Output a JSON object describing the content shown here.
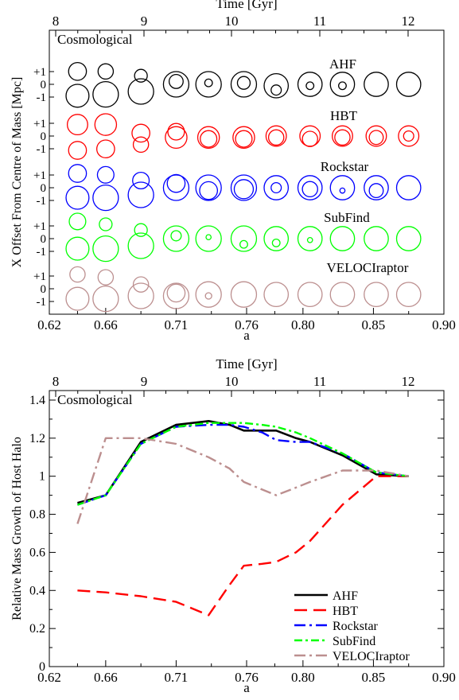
{
  "chart_data": [
    {
      "type": "scatter",
      "panel": "top",
      "top_axis_label": "Time [Gyr]",
      "top_ticks": [
        "8",
        "9",
        "10",
        "11",
        "12"
      ],
      "xlabel": "a",
      "ylabel": "X Offset From Centre of Mass [Mpc]",
      "x_ticks": [
        "0.62",
        "0.66",
        "0.71",
        "0.76",
        "0.80",
        "0.85",
        "0.90"
      ],
      "annotation": "Cosmological",
      "row_tick_labels": [
        "+1",
        "0",
        "-1"
      ],
      "x": [
        0.64,
        0.66,
        0.685,
        0.71,
        0.733,
        0.758,
        0.781,
        0.805,
        0.828,
        0.852,
        0.875
      ],
      "series": [
        {
          "name": "AHF",
          "color": "#000000",
          "host": [
            {
              "y": -0.8,
              "r": 0.9
            },
            {
              "y": -0.7,
              "r": 1.0
            },
            {
              "y": -0.5,
              "r": 1.0
            },
            {
              "y": 0,
              "r": 1.0
            },
            {
              "y": 0,
              "r": 1.0
            },
            {
              "y": 0,
              "r": 1.0
            },
            {
              "y": -0.1,
              "r": 0.95
            },
            {
              "y": 0,
              "r": 0.95
            },
            {
              "y": 0,
              "r": 0.95
            },
            {
              "y": 0,
              "r": 0.95
            },
            {
              "y": 0,
              "r": 0.95
            }
          ],
          "sub": [
            {
              "y": 0.9,
              "r": 0.7
            },
            {
              "y": 0.9,
              "r": 0.6
            },
            {
              "y": 0.6,
              "r": 0.5
            },
            {
              "y": 0.2,
              "r": 0.55
            },
            {
              "y": 0.1,
              "r": 0.3
            },
            {
              "y": 0.1,
              "r": 0.5
            },
            {
              "y": -0.4,
              "r": 0.4
            },
            {
              "y": -0.1,
              "r": 0.3
            },
            {
              "y": -0.1,
              "r": 0.3
            },
            null,
            null
          ]
        },
        {
          "name": "HBT",
          "color": "#ff0000",
          "host": [
            {
              "y": 0.8,
              "r": 0.8
            },
            {
              "y": 0.8,
              "r": 0.85
            },
            {
              "y": 0.2,
              "r": 0.7
            },
            {
              "y": -0.1,
              "r": 0.85
            },
            {
              "y": -0.1,
              "r": 0.85
            },
            {
              "y": -0.1,
              "r": 0.85
            },
            {
              "y": 0,
              "r": 0.8
            },
            {
              "y": 0,
              "r": 0.8
            },
            {
              "y": 0,
              "r": 0.8
            },
            {
              "y": 0,
              "r": 0.8
            },
            {
              "y": 0,
              "r": 0.8
            }
          ],
          "sub": [
            {
              "y": -1.0,
              "r": 0.7
            },
            {
              "y": -0.9,
              "r": 0.7
            },
            {
              "y": -0.6,
              "r": 0.6
            },
            {
              "y": 0.3,
              "r": 0.65
            },
            {
              "y": -0.2,
              "r": 0.65
            },
            {
              "y": -0.2,
              "r": 0.65
            },
            {
              "y": -0.1,
              "r": 0.6
            },
            {
              "y": -0.2,
              "r": 0.6
            },
            {
              "y": -0.1,
              "r": 0.6
            },
            {
              "y": -0.1,
              "r": 0.55
            },
            {
              "y": 0,
              "r": 0.4
            }
          ]
        },
        {
          "name": "Rockstar",
          "color": "#0000ff",
          "host": [
            {
              "y": -0.7,
              "r": 0.9
            },
            {
              "y": -0.7,
              "r": 1.0
            },
            {
              "y": -0.5,
              "r": 1.0
            },
            {
              "y": 0,
              "r": 1.0
            },
            {
              "y": 0,
              "r": 1.0
            },
            {
              "y": 0,
              "r": 1.0
            },
            {
              "y": 0,
              "r": 0.95
            },
            {
              "y": 0,
              "r": 0.95
            },
            {
              "y": 0,
              "r": 0.95
            },
            {
              "y": 0,
              "r": 0.95
            },
            {
              "y": 0,
              "r": 0.95
            }
          ],
          "sub": [
            {
              "y": 1.0,
              "r": 0.7
            },
            {
              "y": 0.9,
              "r": 0.65
            },
            {
              "y": 0.5,
              "r": 0.65
            },
            {
              "y": 0.3,
              "r": 0.7
            },
            {
              "y": -0.2,
              "r": 0.7
            },
            {
              "y": -0.1,
              "r": 0.75
            },
            {
              "y": 0,
              "r": 0.4
            },
            {
              "y": -0.1,
              "r": 0.6
            },
            {
              "y": -0.2,
              "r": 0.2
            },
            {
              "y": -0.2,
              "r": 0.55
            },
            null
          ]
        },
        {
          "name": "SubFind",
          "color": "#00ff00",
          "host": [
            {
              "y": -0.7,
              "r": 0.9
            },
            {
              "y": -0.7,
              "r": 1.0
            },
            {
              "y": -0.5,
              "r": 1.0
            },
            {
              "y": 0,
              "r": 1.0
            },
            {
              "y": 0,
              "r": 1.0
            },
            {
              "y": 0,
              "r": 1.0
            },
            {
              "y": 0,
              "r": 0.95
            },
            {
              "y": 0,
              "r": 0.95
            },
            {
              "y": 0,
              "r": 0.95
            },
            {
              "y": 0,
              "r": 0.95
            },
            {
              "y": 0,
              "r": 0.95
            }
          ],
          "sub": [
            {
              "y": 1.2,
              "r": 0.65
            },
            {
              "y": 1.0,
              "r": 0.5
            },
            {
              "y": 0.6,
              "r": 0.5
            },
            {
              "y": 0.2,
              "r": 0.4
            },
            {
              "y": 0.1,
              "r": 0.2
            },
            {
              "y": -0.4,
              "r": 0.3
            },
            {
              "y": -0.3,
              "r": 0.3
            },
            {
              "y": -0.1,
              "r": 0.2
            },
            null,
            null,
            null
          ]
        },
        {
          "name": "VELOCIraptor",
          "color": "#bc8f8f",
          "host": [
            {
              "y": -0.7,
              "r": 0.9
            },
            {
              "y": -0.7,
              "r": 1.0
            },
            {
              "y": -0.5,
              "r": 1.0
            },
            {
              "y": -0.5,
              "r": 1.0
            },
            {
              "y": -0.4,
              "r": 1.0
            },
            {
              "y": -0.4,
              "r": 1.0
            },
            {
              "y": -0.4,
              "r": 0.95
            },
            {
              "y": -0.4,
              "r": 0.95
            },
            {
              "y": -0.4,
              "r": 0.95
            },
            {
              "y": -0.4,
              "r": 0.95
            },
            {
              "y": -0.4,
              "r": 0.95
            }
          ],
          "sub": [
            {
              "y": 1.0,
              "r": 0.6
            },
            {
              "y": 0.8,
              "r": 0.6
            },
            {
              "y": 0.3,
              "r": 0.6
            },
            {
              "y": -0.3,
              "r": 0.7
            },
            {
              "y": -0.5,
              "r": 0.25
            },
            null,
            null,
            null,
            null,
            null,
            null
          ]
        }
      ]
    },
    {
      "type": "line",
      "panel": "bottom",
      "top_axis_label": "Time [Gyr]",
      "top_ticks": [
        "8",
        "9",
        "10",
        "11",
        "12"
      ],
      "xlabel": "a",
      "ylabel": "Relative Mass Growth of Host Halo",
      "x_ticks": [
        "0.62",
        "0.66",
        "0.71",
        "0.76",
        "0.80",
        "0.85",
        "0.90"
      ],
      "y_ticks": [
        "0",
        "0.2",
        "0.4",
        "0.6",
        "0.8",
        "1",
        "1.2",
        "1.4"
      ],
      "ylim": [
        0,
        1.45
      ],
      "annotation": "Cosmological",
      "legend_position": "bottom-right",
      "x": [
        0.64,
        0.66,
        0.685,
        0.71,
        0.733,
        0.748,
        0.758,
        0.771,
        0.781,
        0.795,
        0.805,
        0.828,
        0.852,
        0.875
      ],
      "series": [
        {
          "name": "AHF",
          "color": "#000000",
          "dash": "solid",
          "values": [
            0.86,
            0.9,
            1.18,
            1.27,
            1.29,
            1.27,
            1.24,
            1.24,
            1.24,
            1.2,
            1.18,
            1.11,
            1.01,
            1.0
          ]
        },
        {
          "name": "HBT",
          "color": "#ff0000",
          "dash": "long",
          "values": [
            0.4,
            0.39,
            0.37,
            0.34,
            0.27,
            0.43,
            0.53,
            0.54,
            0.55,
            0.6,
            0.66,
            0.85,
            1.0,
            1.0
          ]
        },
        {
          "name": "Rockstar",
          "color": "#0000ff",
          "dash": "dashdot",
          "values": [
            0.85,
            0.9,
            1.17,
            1.26,
            1.27,
            1.27,
            1.26,
            1.23,
            1.19,
            1.18,
            1.18,
            1.12,
            1.02,
            1.0
          ]
        },
        {
          "name": "SubFind",
          "color": "#00ff00",
          "dash": "dashdot2",
          "values": [
            0.85,
            0.9,
            1.17,
            1.26,
            1.28,
            1.28,
            1.28,
            1.27,
            1.26,
            1.23,
            1.2,
            1.12,
            1.02,
            1.0
          ]
        },
        {
          "name": "VELOCIraptor",
          "color": "#bc8f8f",
          "dash": "dashdot",
          "values": [
            0.75,
            1.2,
            1.2,
            1.17,
            1.1,
            1.04,
            0.97,
            0.93,
            0.9,
            0.94,
            0.97,
            1.03,
            1.03,
            1.0
          ]
        }
      ]
    }
  ]
}
